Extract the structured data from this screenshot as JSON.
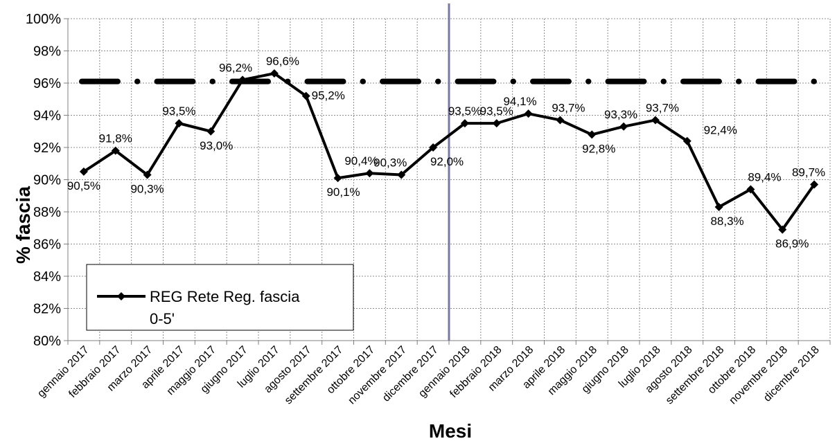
{
  "chart_data": {
    "type": "line",
    "title": "",
    "xlabel": "Mesi",
    "ylabel": "% fascia",
    "ylim": [
      80,
      100
    ],
    "y_ticks": [
      "80%",
      "82%",
      "84%",
      "86%",
      "88%",
      "90%",
      "92%",
      "94%",
      "96%",
      "98%",
      "100%"
    ],
    "grid": true,
    "legend_position": "bottom-left",
    "categories": [
      "gennaio 2017",
      "febbraio 2017",
      "marzo 2017",
      "aprile 2017",
      "maggio 2017",
      "giugno 2017",
      "luglio 2017",
      "agosto 2017",
      "settembre 2017",
      "ottobre 2017",
      "novembre 2017",
      "dicembre 2017",
      "gennaio 2018",
      "febbraio 2018",
      "marzo 2018",
      "aprile 2018",
      "maggio 2018",
      "giugno 2018",
      "luglio 2018",
      "agosto 2018",
      "settembre 2018",
      "ottobre 2018",
      "novembre 2018",
      "dicembre 2018"
    ],
    "series": [
      {
        "name": "REG Rete Reg. fascia 0-5'",
        "legend_lines": [
          "REG Rete Reg. fascia",
          "0-5'"
        ],
        "color": "#000000",
        "values": [
          90.5,
          91.8,
          90.3,
          93.5,
          93.0,
          96.2,
          96.6,
          95.2,
          90.1,
          90.4,
          90.3,
          92.0,
          93.5,
          93.5,
          94.1,
          93.7,
          92.8,
          93.3,
          93.7,
          92.4,
          88.3,
          89.4,
          86.9,
          89.7
        ],
        "labels": [
          "90,5%",
          "91,8%",
          "90,3%",
          "93,5%",
          "93,0%",
          "96,2%",
          "96,6%",
          "95,2%",
          "90,1%",
          "90,4%",
          "90,3%",
          "92,0%",
          "93,5%",
          "93,5%",
          "94,1%",
          "93,7%",
          "92,8%",
          "93,3%",
          "93,7%",
          "92,4%",
          "88,3%",
          "89,4%",
          "86,9%",
          "89,7%"
        ]
      }
    ],
    "target_line": {
      "value": 96.1,
      "style": "dash-dot",
      "color": "#000000"
    },
    "divider": {
      "between_categories": [
        "dicembre 2017",
        "gennaio 2018"
      ],
      "color": "#7777aa"
    }
  }
}
